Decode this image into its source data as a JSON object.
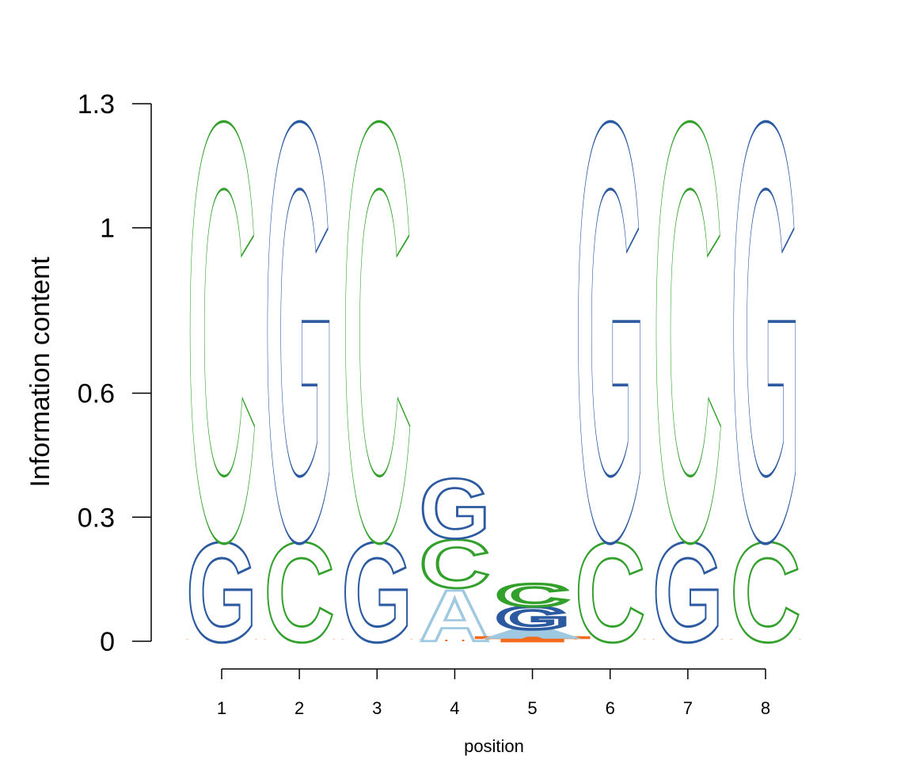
{
  "chart_data": {
    "type": "sequence-logo",
    "title": "",
    "xlabel": "position",
    "ylabel": "Information content",
    "ylim": [
      0,
      1.3
    ],
    "ytick_values": [
      0,
      0.3,
      0.6,
      1,
      1.3
    ],
    "ytick_labels": [
      "0",
      "0.3",
      "0.6",
      "1",
      "1.3"
    ],
    "positions": [
      {
        "label": "1",
        "stack": [
          {
            "letter": "T",
            "height": 0.0
          },
          {
            "letter": "G",
            "height": 0.25
          },
          {
            "letter": "C",
            "height": 1.05
          }
        ]
      },
      {
        "label": "2",
        "stack": [
          {
            "letter": "T",
            "height": 0.0
          },
          {
            "letter": "C",
            "height": 0.25
          },
          {
            "letter": "G",
            "height": 1.05
          }
        ]
      },
      {
        "label": "3",
        "stack": [
          {
            "letter": "T",
            "height": 0.0
          },
          {
            "letter": "G",
            "height": 0.25
          },
          {
            "letter": "C",
            "height": 1.05
          }
        ]
      },
      {
        "label": "4",
        "stack": [
          {
            "letter": "T",
            "height": 0.0
          },
          {
            "letter": "A",
            "height": 0.13
          },
          {
            "letter": "C",
            "height": 0.12
          },
          {
            "letter": "G",
            "height": 0.15
          }
        ]
      },
      {
        "label": "5",
        "stack": [
          {
            "letter": "T",
            "height": 0.01
          },
          {
            "letter": "A",
            "height": 0.02
          },
          {
            "letter": "G",
            "height": 0.055
          },
          {
            "letter": "C",
            "height": 0.055
          }
        ]
      },
      {
        "label": "6",
        "stack": [
          {
            "letter": "T",
            "height": 0.0
          },
          {
            "letter": "C",
            "height": 0.25
          },
          {
            "letter": "G",
            "height": 1.05
          }
        ]
      },
      {
        "label": "7",
        "stack": [
          {
            "letter": "T",
            "height": 0.0
          },
          {
            "letter": "G",
            "height": 0.25
          },
          {
            "letter": "C",
            "height": 1.05
          }
        ]
      },
      {
        "label": "8",
        "stack": [
          {
            "letter": "T",
            "height": 0.0
          },
          {
            "letter": "C",
            "height": 0.25
          },
          {
            "letter": "G",
            "height": 1.05
          }
        ]
      }
    ],
    "colors": {
      "A": "#9ec9e0",
      "C": "#33a02c",
      "G": "#2c5aa0",
      "T": "#f26b1d"
    }
  }
}
